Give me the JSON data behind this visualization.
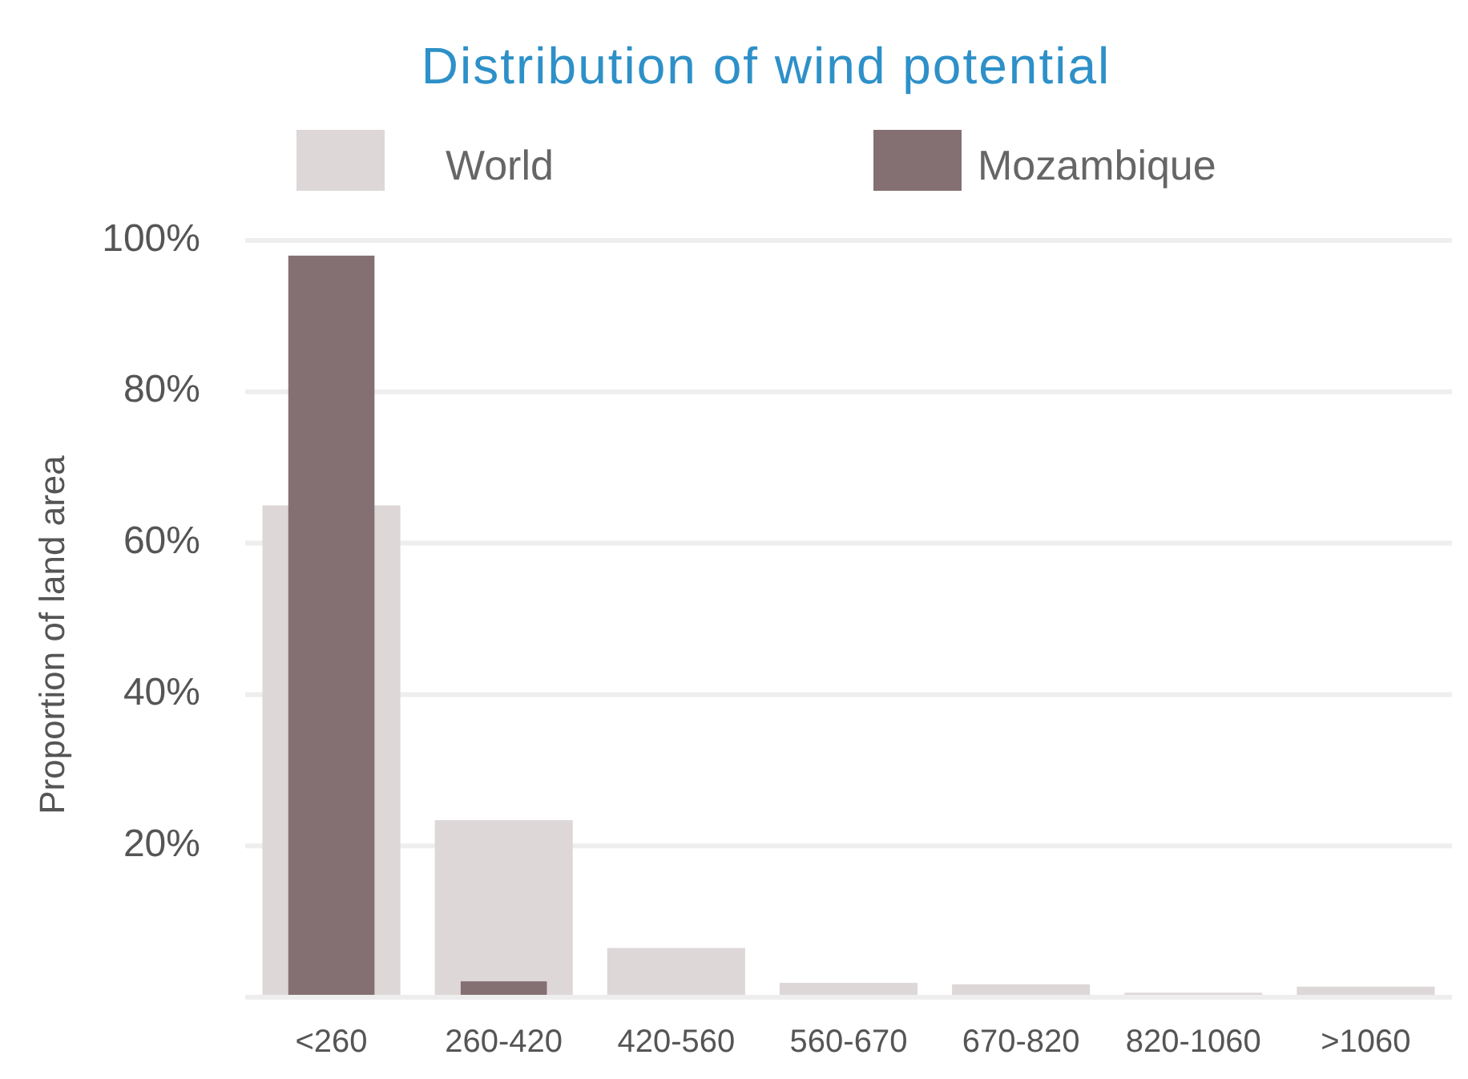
{
  "chart_data": {
    "type": "bar",
    "title": "Distribution of wind potential",
    "ylabel": "Proportion of land area",
    "categories": [
      "<260",
      "260-420",
      "420-560",
      "560-670",
      "670-820",
      "820-1060",
      ">1060"
    ],
    "series": [
      {
        "name": "World",
        "color": "#ddd7d8",
        "values": [
          65,
          23.4,
          6.5,
          1.9,
          1.7,
          0.6,
          1.4
        ]
      },
      {
        "name": "Mozambique",
        "color": "#847073",
        "values": [
          98,
          2.1,
          0,
          0,
          0,
          0,
          0
        ]
      }
    ],
    "ylim": [
      0,
      100
    ],
    "yticks": [
      {
        "value": 0,
        "label": null
      },
      {
        "value": 20,
        "label": "20%"
      },
      {
        "value": 40,
        "label": "40%"
      },
      {
        "value": 60,
        "label": "60%"
      },
      {
        "value": 80,
        "label": "80%"
      },
      {
        "value": 100,
        "label": "100%"
      }
    ],
    "grid": "y",
    "legend": "top"
  }
}
